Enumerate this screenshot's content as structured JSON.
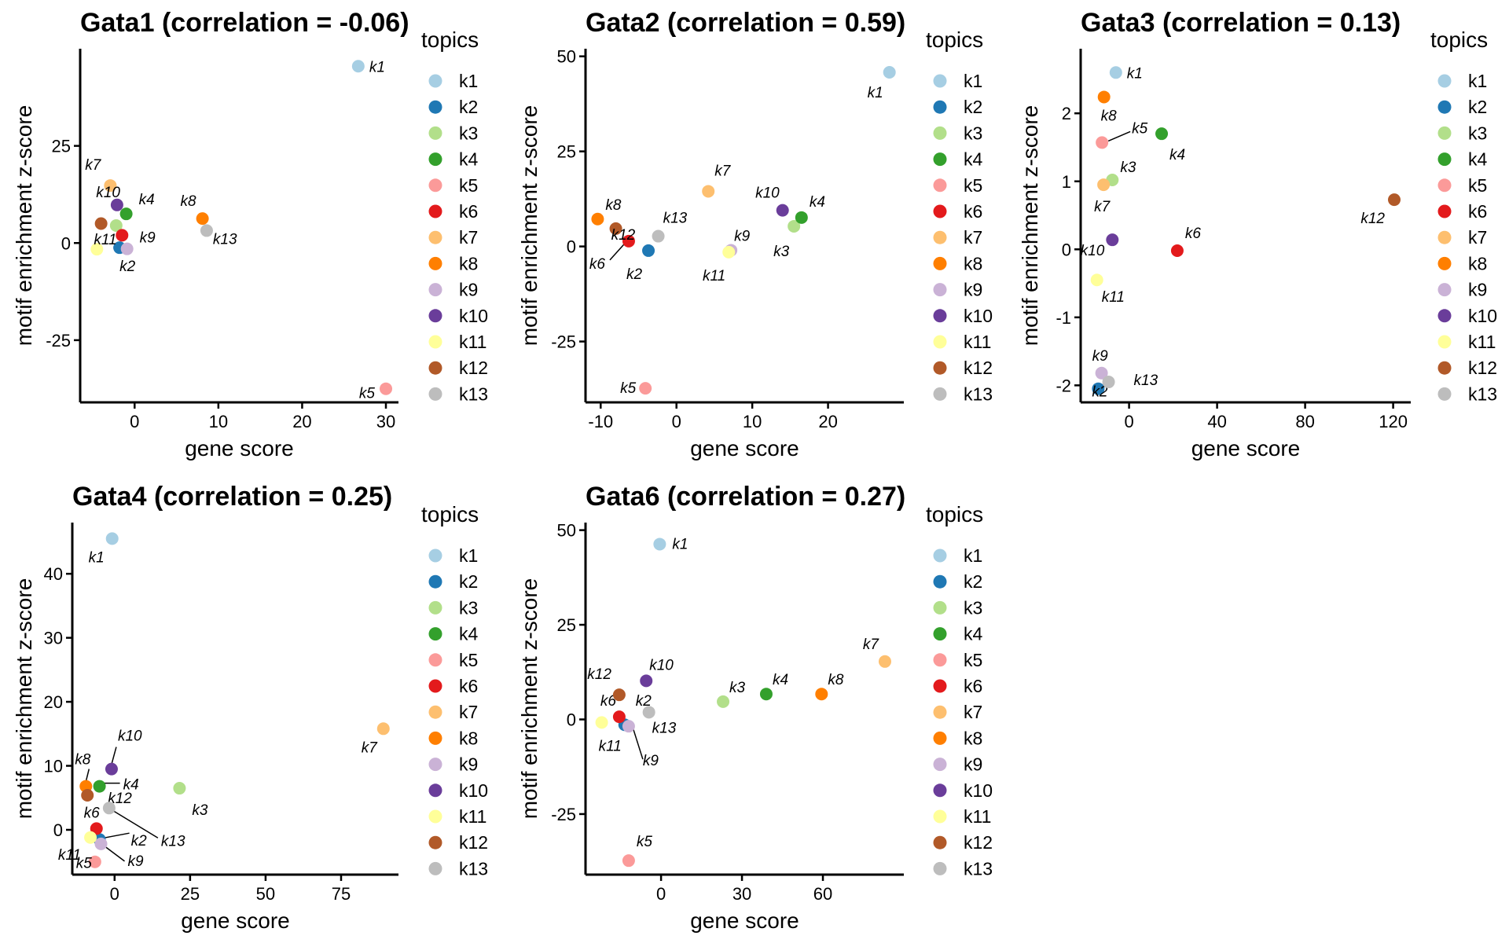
{
  "legend": {
    "title": "topics",
    "items": [
      {
        "name": "k1",
        "color": "#a6cee3"
      },
      {
        "name": "k2",
        "color": "#1f78b4"
      },
      {
        "name": "k3",
        "color": "#b2df8a"
      },
      {
        "name": "k4",
        "color": "#33a02c"
      },
      {
        "name": "k5",
        "color": "#fb9a99"
      },
      {
        "name": "k6",
        "color": "#e31a1c"
      },
      {
        "name": "k7",
        "color": "#fdbf6f"
      },
      {
        "name": "k8",
        "color": "#ff7f00"
      },
      {
        "name": "k9",
        "color": "#cab2d6"
      },
      {
        "name": "k10",
        "color": "#6a3d9a"
      },
      {
        "name": "k11",
        "color": "#ffff99"
      },
      {
        "name": "k12",
        "color": "#b15928"
      },
      {
        "name": "k13",
        "color": "#bdbdbd"
      }
    ]
  },
  "chart_data": [
    {
      "type": "scatter",
      "title": "Gata1 (correlation = -0.06)",
      "xlabel": "gene score",
      "ylabel": "motif enrichment z-score",
      "xlim": [
        -6.5,
        31.5
      ],
      "ylim": [
        -41,
        50
      ],
      "xticks": [
        0,
        10,
        20,
        30
      ],
      "yticks": [
        -25,
        0,
        25
      ],
      "points": [
        {
          "topic": "k1",
          "x": 26.7,
          "y": 45.5
        },
        {
          "topic": "k2",
          "x": -1.8,
          "y": -1.2
        },
        {
          "topic": "k3",
          "x": -2.2,
          "y": 4.5
        },
        {
          "topic": "k4",
          "x": -1.0,
          "y": 7.5
        },
        {
          "topic": "k5",
          "x": 30.0,
          "y": -37.5
        },
        {
          "topic": "k6",
          "x": -1.5,
          "y": 2.0
        },
        {
          "topic": "k7",
          "x": -2.9,
          "y": 14.8
        },
        {
          "topic": "k8",
          "x": 8.1,
          "y": 6.3
        },
        {
          "topic": "k9",
          "x": -0.9,
          "y": -1.5
        },
        {
          "topic": "k10",
          "x": -2.1,
          "y": 9.8
        },
        {
          "topic": "k11",
          "x": -4.5,
          "y": -1.6
        },
        {
          "topic": "k12",
          "x": -4.0,
          "y": 5.0
        },
        {
          "topic": "k13",
          "x": 8.6,
          "y": 3.2
        }
      ]
    },
    {
      "type": "scatter",
      "title": "Gata2 (correlation = 0.59)",
      "xlabel": "gene score",
      "ylabel": "motif enrichment z-score",
      "xlim": [
        -12,
        30
      ],
      "ylim": [
        -41,
        52
      ],
      "xticks": [
        -10,
        0,
        10,
        20
      ],
      "yticks": [
        -25,
        0,
        25,
        50
      ],
      "points": [
        {
          "topic": "k1",
          "x": 28.1,
          "y": 45.8
        },
        {
          "topic": "k2",
          "x": -3.7,
          "y": -1.1
        },
        {
          "topic": "k3",
          "x": 15.5,
          "y": 5.3
        },
        {
          "topic": "k4",
          "x": 16.5,
          "y": 7.6
        },
        {
          "topic": "k5",
          "x": -4.1,
          "y": -37.3
        },
        {
          "topic": "k6",
          "x": -6.3,
          "y": 1.4
        },
        {
          "topic": "k7",
          "x": 4.2,
          "y": 14.5
        },
        {
          "topic": "k8",
          "x": -10.4,
          "y": 7.2
        },
        {
          "topic": "k9",
          "x": 7.2,
          "y": -1.0
        },
        {
          "topic": "k10",
          "x": 14.0,
          "y": 9.5
        },
        {
          "topic": "k11",
          "x": 6.9,
          "y": -1.5
        },
        {
          "topic": "k12",
          "x": -8.0,
          "y": 4.7
        },
        {
          "topic": "k13",
          "x": -2.4,
          "y": 2.7
        }
      ]
    },
    {
      "type": "scatter",
      "title": "Gata3 (correlation = 0.13)",
      "xlabel": "gene score",
      "ylabel": "motif enrichment z-score",
      "xlim": [
        -22,
        128
      ],
      "ylim": [
        -2.25,
        2.95
      ],
      "xticks": [
        0,
        40,
        80,
        120
      ],
      "yticks": [
        -2,
        -1,
        0,
        1,
        2
      ],
      "points": [
        {
          "topic": "k1",
          "x": -6.0,
          "y": 2.6
        },
        {
          "topic": "k2",
          "x": -14.0,
          "y": -2.05
        },
        {
          "topic": "k3",
          "x": -7.6,
          "y": 1.02
        },
        {
          "topic": "k4",
          "x": 14.8,
          "y": 1.7
        },
        {
          "topic": "k5",
          "x": -12.3,
          "y": 1.57
        },
        {
          "topic": "k6",
          "x": 21.9,
          "y": -0.02
        },
        {
          "topic": "k7",
          "x": -11.6,
          "y": 0.95
        },
        {
          "topic": "k8",
          "x": -11.4,
          "y": 2.24
        },
        {
          "topic": "k9",
          "x": -12.5,
          "y": -1.82
        },
        {
          "topic": "k10",
          "x": -7.6,
          "y": 0.14
        },
        {
          "topic": "k11",
          "x": -14.6,
          "y": -0.45
        },
        {
          "topic": "k12",
          "x": 120.5,
          "y": 0.73
        },
        {
          "topic": "k13",
          "x": -9.3,
          "y": -1.95
        }
      ]
    },
    {
      "type": "scatter",
      "title": "Gata4 (correlation = 0.25)",
      "xlabel": "gene score",
      "ylabel": "motif enrichment z-score",
      "xlim": [
        -14,
        94
      ],
      "ylim": [
        -7,
        48
      ],
      "xticks": [
        0,
        25,
        50,
        75
      ],
      "yticks": [
        0,
        10,
        20,
        30,
        40
      ],
      "points": [
        {
          "topic": "k1",
          "x": -0.8,
          "y": 45.5
        },
        {
          "topic": "k2",
          "x": -5.0,
          "y": -1.5
        },
        {
          "topic": "k3",
          "x": 21.5,
          "y": 6.5
        },
        {
          "topic": "k4",
          "x": -5.0,
          "y": 6.8
        },
        {
          "topic": "k5",
          "x": -6.5,
          "y": -5.0
        },
        {
          "topic": "k6",
          "x": -6.0,
          "y": 0.2
        },
        {
          "topic": "k7",
          "x": 89.0,
          "y": 15.8
        },
        {
          "topic": "k8",
          "x": -9.5,
          "y": 6.8
        },
        {
          "topic": "k9",
          "x": -4.5,
          "y": -2.2
        },
        {
          "topic": "k10",
          "x": -1.0,
          "y": 9.5
        },
        {
          "topic": "k11",
          "x": -8.0,
          "y": -1.2
        },
        {
          "topic": "k12",
          "x": -9.0,
          "y": 5.4
        },
        {
          "topic": "k13",
          "x": -1.8,
          "y": 3.4
        }
      ]
    },
    {
      "type": "scatter",
      "title": "Gata6 (correlation = 0.27)",
      "xlabel": "gene score",
      "ylabel": "motif enrichment z-score",
      "xlim": [
        -28,
        90
      ],
      "ylim": [
        -41,
        52
      ],
      "xticks": [
        0,
        30,
        60
      ],
      "yticks": [
        -25,
        0,
        25,
        50
      ],
      "points": [
        {
          "topic": "k1",
          "x": -0.5,
          "y": 46.3
        },
        {
          "topic": "k2",
          "x": -13.5,
          "y": -1.4
        },
        {
          "topic": "k3",
          "x": 23.0,
          "y": 4.7
        },
        {
          "topic": "k4",
          "x": 39.0,
          "y": 6.7
        },
        {
          "topic": "k5",
          "x": -12.0,
          "y": -37.3
        },
        {
          "topic": "k6",
          "x": -15.5,
          "y": 0.7
        },
        {
          "topic": "k7",
          "x": 83.0,
          "y": 15.3
        },
        {
          "topic": "k8",
          "x": 59.5,
          "y": 6.7
        },
        {
          "topic": "k9",
          "x": -12.0,
          "y": -1.8
        },
        {
          "topic": "k10",
          "x": -5.5,
          "y": 10.2
        },
        {
          "topic": "k11",
          "x": -22.0,
          "y": -0.8
        },
        {
          "topic": "k12",
          "x": -15.5,
          "y": 6.5
        },
        {
          "topic": "k13",
          "x": -4.5,
          "y": 1.9
        }
      ]
    }
  ]
}
